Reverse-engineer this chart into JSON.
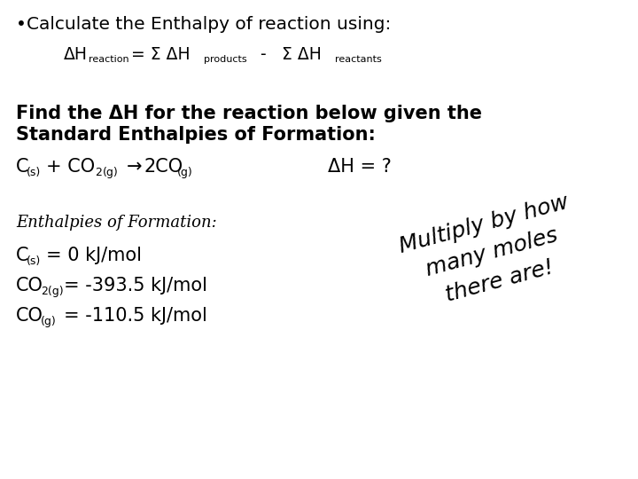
{
  "background_color": "#ffffff",
  "text_color": "#000000",
  "bullet_line": "Calculate the Enthalpy of reaction using:",
  "find_line1": "Find the ΔH for the reaction below given the",
  "find_line2": "Standard Enthalpies of Formation:",
  "enthalpies_title": "Enthalpies of Formation:",
  "multiply_line1": "Multiply by how",
  "multiply_line2": "many moles",
  "multiply_line3": "there are!",
  "fs_bullet": 14.5,
  "fs_formula": 13.5,
  "fs_sub_formula": 8,
  "fs_find": 15,
  "fs_reaction": 15,
  "fs_sub_reaction": 9,
  "fs_enthalpies": 13,
  "fs_chem": 15,
  "fs_sub_chem": 9,
  "fs_multiply": 18,
  "multiply_rotation": 15
}
